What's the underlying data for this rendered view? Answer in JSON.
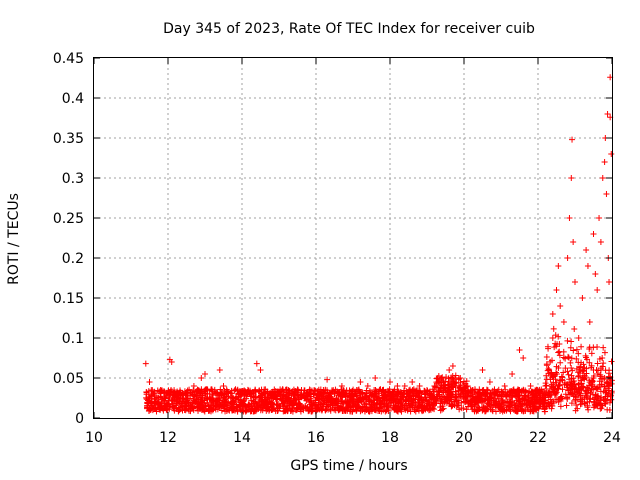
{
  "chart_data": {
    "type": "scatter",
    "title": "Day 345 of 2023, Rate Of TEC Index for receiver cuib",
    "xlabel": "GPS time / hours",
    "ylabel": "ROTI / TECUs",
    "xlim": [
      10,
      24
    ],
    "ylim": [
      0,
      0.45
    ],
    "xticks": [
      "10",
      "12",
      "14",
      "16",
      "18",
      "20",
      "22",
      "24"
    ],
    "yticks": [
      "0",
      "0.05",
      "0.1",
      "0.15",
      "0.2",
      "0.25",
      "0.3",
      "0.35",
      "0.4",
      "0.45"
    ],
    "grid": true,
    "marker": "plus",
    "color": "#ff0000",
    "series": [
      {
        "points": [
          [
            11.4,
            0.068
          ],
          [
            11.5,
            0.045
          ],
          [
            11.5,
            0.012
          ],
          [
            11.6,
            0.03
          ],
          [
            11.7,
            0.02
          ],
          [
            11.8,
            0.035
          ],
          [
            11.9,
            0.025
          ],
          [
            12.0,
            0.018
          ],
          [
            12.05,
            0.073
          ],
          [
            12.1,
            0.07
          ],
          [
            12.15,
            0.03
          ],
          [
            12.3,
            0.02
          ],
          [
            12.5,
            0.015
          ],
          [
            12.7,
            0.04
          ],
          [
            12.9,
            0.05
          ],
          [
            13.0,
            0.055
          ],
          [
            13.2,
            0.03
          ],
          [
            13.4,
            0.06
          ],
          [
            13.5,
            0.04
          ],
          [
            13.7,
            0.02
          ],
          [
            14.0,
            0.03
          ],
          [
            14.4,
            0.068
          ],
          [
            14.5,
            0.06
          ],
          [
            14.6,
            0.03
          ],
          [
            14.8,
            0.02
          ],
          [
            15.0,
            0.015
          ],
          [
            15.3,
            0.02
          ],
          [
            15.6,
            0.03
          ],
          [
            16.0,
            0.025
          ],
          [
            16.2,
            0.035
          ],
          [
            16.3,
            0.048
          ],
          [
            16.5,
            0.03
          ],
          [
            16.7,
            0.04
          ],
          [
            16.9,
            0.02
          ],
          [
            17.1,
            0.035
          ],
          [
            17.2,
            0.045
          ],
          [
            17.4,
            0.04
          ],
          [
            17.6,
            0.05
          ],
          [
            17.8,
            0.035
          ],
          [
            18.0,
            0.045
          ],
          [
            18.2,
            0.04
          ],
          [
            18.4,
            0.04
          ],
          [
            18.6,
            0.045
          ],
          [
            18.8,
            0.04
          ],
          [
            19.0,
            0.035
          ],
          [
            19.2,
            0.04
          ],
          [
            19.4,
            0.05
          ],
          [
            19.6,
            0.06
          ],
          [
            19.7,
            0.065
          ],
          [
            19.9,
            0.05
          ],
          [
            20.1,
            0.04
          ],
          [
            20.3,
            0.035
          ],
          [
            20.5,
            0.06
          ],
          [
            20.7,
            0.045
          ],
          [
            20.9,
            0.03
          ],
          [
            21.1,
            0.04
          ],
          [
            21.3,
            0.055
          ],
          [
            21.5,
            0.085
          ],
          [
            21.6,
            0.075
          ],
          [
            21.8,
            0.04
          ],
          [
            22.0,
            0.03
          ],
          [
            22.2,
            0.04
          ],
          [
            22.3,
            0.06
          ],
          [
            22.4,
            0.1
          ],
          [
            22.4,
            0.13
          ],
          [
            22.5,
            0.16
          ],
          [
            22.55,
            0.19
          ],
          [
            22.6,
            0.14
          ],
          [
            22.7,
            0.12
          ],
          [
            22.8,
            0.2
          ],
          [
            22.85,
            0.25
          ],
          [
            22.9,
            0.3
          ],
          [
            22.92,
            0.348
          ],
          [
            22.95,
            0.22
          ],
          [
            23.0,
            0.17
          ],
          [
            23.1,
            0.1
          ],
          [
            23.2,
            0.15
          ],
          [
            23.3,
            0.21
          ],
          [
            23.35,
            0.19
          ],
          [
            23.4,
            0.12
          ],
          [
            23.5,
            0.23
          ],
          [
            23.55,
            0.18
          ],
          [
            23.6,
            0.16
          ],
          [
            23.65,
            0.25
          ],
          [
            23.7,
            0.22
          ],
          [
            23.75,
            0.3
          ],
          [
            23.8,
            0.32
          ],
          [
            23.82,
            0.35
          ],
          [
            23.85,
            0.28
          ],
          [
            23.88,
            0.38
          ],
          [
            23.9,
            0.2
          ],
          [
            23.92,
            0.17
          ],
          [
            23.95,
            0.426
          ],
          [
            23.95,
            0.376
          ],
          [
            23.98,
            0.33
          ],
          [
            23.7,
            0.06
          ],
          [
            23.8,
            0.05
          ],
          [
            23.9,
            0.04
          ],
          [
            23.5,
            0.06
          ],
          [
            23.2,
            0.05
          ],
          [
            22.9,
            0.04
          ]
        ]
      }
    ]
  }
}
